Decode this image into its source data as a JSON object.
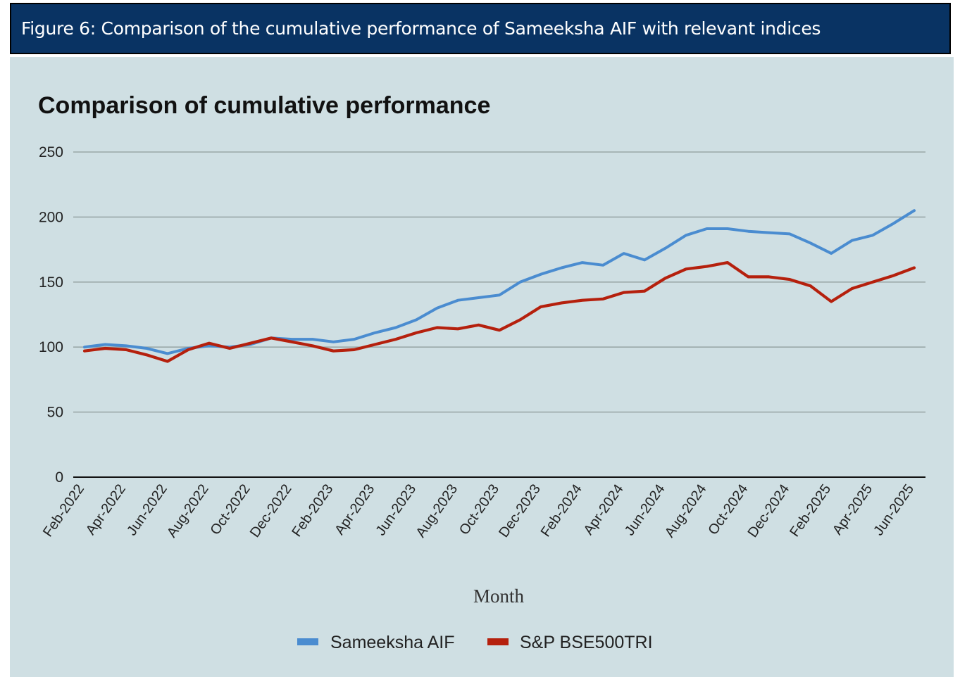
{
  "figure": {
    "caption": "Figure 6: Comparison of the cumulative performance of Sameeksha AIF with relevant indices"
  },
  "colors": {
    "header_bg": "#093363",
    "panel_bg": "#cfdfe3",
    "grid": "#9aa8a8",
    "series_1": "#4a8cd0",
    "series_2": "#b5200d"
  },
  "chart_data": {
    "type": "line",
    "title": "Comparison of cumulative performance",
    "xlabel": "Month",
    "ylabel": "",
    "ylim": [
      0,
      250
    ],
    "yticks": [
      0,
      50,
      100,
      150,
      200,
      250
    ],
    "grid": true,
    "legend_position": "bottom",
    "x": [
      "Feb-2022",
      "Mar-2022",
      "Apr-2022",
      "May-2022",
      "Jun-2022",
      "Jul-2022",
      "Aug-2022",
      "Sep-2022",
      "Oct-2022",
      "Nov-2022",
      "Dec-2022",
      "Jan-2023",
      "Feb-2023",
      "Mar-2023",
      "Apr-2023",
      "May-2023",
      "Jun-2023",
      "Jul-2023",
      "Aug-2023",
      "Sep-2023",
      "Oct-2023",
      "Nov-2023",
      "Dec-2023",
      "Jan-2024",
      "Feb-2024",
      "Mar-2024",
      "Apr-2024",
      "May-2024",
      "Jun-2024",
      "Jul-2024",
      "Aug-2024",
      "Sep-2024",
      "Oct-2024",
      "Nov-2024",
      "Dec-2024",
      "Jan-2025",
      "Feb-2025",
      "Mar-2025",
      "Apr-2025",
      "May-2025",
      "Jun-2025"
    ],
    "tick_labels": [
      "Feb-2022",
      "Apr-2022",
      "Jun-2022",
      "Aug-2022",
      "Oct-2022",
      "Dec-2022",
      "Feb-2023",
      "Apr-2023",
      "Jun-2023",
      "Aug-2023",
      "Oct-2023",
      "Dec-2023",
      "Feb-2024",
      "Apr-2024",
      "Jun-2024",
      "Aug-2024",
      "Oct-2024",
      "Dec-2024",
      "Feb-2025",
      "Apr-2025",
      "Jun-2025"
    ],
    "series": [
      {
        "name": "Sameeksha AIF",
        "color": "#4a8cd0",
        "values": [
          100,
          102,
          101,
          99,
          95,
          99,
          101,
          100,
          102,
          107,
          106,
          106,
          104,
          106,
          111,
          115,
          121,
          130,
          136,
          138,
          140,
          150,
          156,
          161,
          165,
          163,
          172,
          167,
          176,
          186,
          191,
          191,
          189,
          188,
          187,
          180,
          172,
          182,
          186,
          195,
          205
        ]
      },
      {
        "name": "S&P BSE500TRI",
        "color": "#b5200d",
        "values": [
          97,
          99,
          98,
          94,
          89,
          98,
          103,
          99,
          103,
          107,
          104,
          101,
          97,
          98,
          102,
          106,
          111,
          115,
          114,
          117,
          113,
          121,
          131,
          134,
          136,
          137,
          142,
          143,
          153,
          160,
          162,
          165,
          154,
          154,
          152,
          147,
          135,
          145,
          150,
          155,
          161
        ]
      }
    ]
  }
}
